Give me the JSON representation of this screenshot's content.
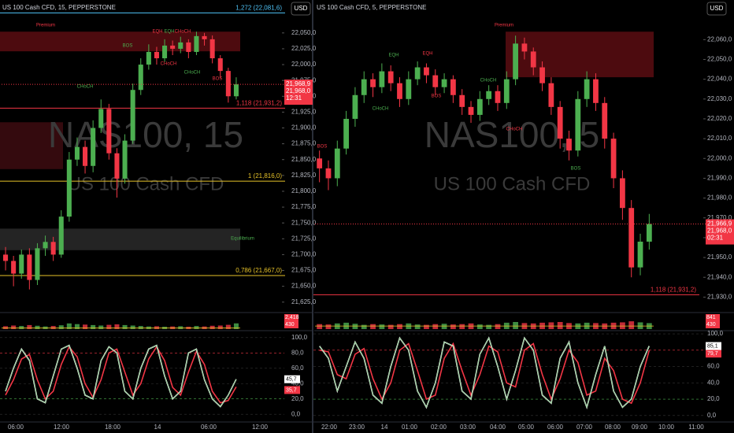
{
  "chart_data": [
    {
      "type": "candlestick",
      "title": "US 100 Cash CFD, 15, PEPPERSTONE",
      "currency": "USD",
      "watermark": "NAS100, 15",
      "watermark_sub": "US 100 Cash CFD",
      "up_color": "#4caf50",
      "down_color": "#f23645",
      "ylim": [
        21611,
        22102
      ],
      "yticks": [
        {
          "value": 22050,
          "label": "22,050,0"
        },
        {
          "value": 22025,
          "label": "22,025,0"
        },
        {
          "value": 22000,
          "label": "22,000,0"
        },
        {
          "value": 21975,
          "label": "21,975,0"
        },
        {
          "value": 21950,
          "label": "21,950,0"
        },
        {
          "value": 21925,
          "label": "21,925,0"
        },
        {
          "value": 21900,
          "label": "21,900,0"
        },
        {
          "value": 21875,
          "label": "21,875,0"
        },
        {
          "value": 21850,
          "label": "21,850,0"
        },
        {
          "value": 21825,
          "label": "21,825,0"
        },
        {
          "value": 21800,
          "label": "21,800,0"
        },
        {
          "value": 21775,
          "label": "21,775,0"
        },
        {
          "value": 21750,
          "label": "21,750,0"
        },
        {
          "value": 21725,
          "label": "21,725,0"
        },
        {
          "value": 21700,
          "label": "21,700,0"
        },
        {
          "value": 21675,
          "label": "21,675,0"
        },
        {
          "value": 21650,
          "label": "21,650,0"
        },
        {
          "value": 21625,
          "label": "21,625,0"
        }
      ],
      "xlabels": [
        "06:00",
        "12:00",
        "18:00",
        "14",
        "06:00",
        "12:00"
      ],
      "candles": {
        "open": [
          21700,
          21690,
          21670,
          21700,
          21660,
          21710,
          21720,
          21700,
          21760,
          21850,
          21870,
          21840,
          21900,
          21930,
          21860,
          21820,
          21880,
          21960,
          22000,
          22020,
          22010,
          22030,
          22025,
          22035,
          22020,
          22045,
          22040,
          22010,
          21990,
          21950
        ],
        "high": [
          21712,
          21698,
          21708,
          21710,
          21718,
          21730,
          21728,
          21770,
          21862,
          21885,
          21880,
          21912,
          21945,
          21938,
          21868,
          21890,
          21970,
          22010,
          22032,
          22028,
          22040,
          22038,
          22044,
          22040,
          22052,
          22050,
          22046,
          22015,
          21995,
          21980
        ],
        "low": [
          21675,
          21650,
          21662,
          21645,
          21652,
          21698,
          21690,
          21695,
          21752,
          21840,
          21828,
          21830,
          21892,
          21850,
          21790,
          21812,
          21875,
          21952,
          21992,
          22000,
          22004,
          22015,
          22018,
          22010,
          22015,
          22030,
          22002,
          21978,
          21940,
          21945
        ],
        "close": [
          21690,
          21670,
          21700,
          21660,
          21710,
          21720,
          21700,
          21760,
          21850,
          21870,
          21840,
          21900,
          21930,
          21860,
          21820,
          21880,
          21960,
          22000,
          22020,
          22010,
          22030,
          22025,
          22035,
          22020,
          22045,
          22040,
          22010,
          21990,
          21950,
          21968.9
        ]
      },
      "last_price": {
        "value": 21968.9,
        "label": "21,968,9"
      },
      "bid": {
        "value": 21968,
        "label": "21,968,0"
      },
      "countdown": "12:31",
      "levels": [
        {
          "value": 22081.6,
          "label": "1,272 (22,081,6)",
          "color": "#4fc3f7"
        },
        {
          "value": 21931.2,
          "label": "1,118 (21,931,2)",
          "color": "#f23645"
        },
        {
          "value": 21816,
          "label": "1 (21,816,0)",
          "color": "#e6c229"
        },
        {
          "value": 21667,
          "label": "0,786 (21,667,0)",
          "color": "#e6c229"
        }
      ],
      "zones": [
        {
          "from": 22021,
          "to": 22052,
          "color": "#5a0d12"
        },
        {
          "from": 21835,
          "to": 21909,
          "color": "#3d0c10"
        },
        {
          "from": 21707,
          "to": 21741,
          "color": "#2a2a2a"
        }
      ],
      "annotations": [
        "Premium",
        "BOS",
        "EQH",
        "EQH",
        "CHoCH",
        "CHoCH",
        "CHoCH",
        "CHoCH",
        "BOS",
        "Equilibrium"
      ],
      "volume": {
        "ylim": [
          0,
          6000
        ],
        "values": [
          1200,
          1500,
          1300,
          1700,
          1400,
          1100,
          1300,
          1600,
          2400,
          2100,
          1900,
          1700,
          1500,
          1800,
          2000,
          1700,
          1500,
          1300,
          1100,
          1200,
          1000,
          1100,
          1200,
          1000,
          1300,
          1100,
          1400,
          1500,
          1800,
          2418
        ],
        "last_label": "2,418"
      },
      "volume_ma": {
        "value": 430,
        "label": "430"
      },
      "oscillator": {
        "ylim": [
          -8,
          107
        ],
        "yticks": [
          {
            "value": 100,
            "label": "100,0"
          },
          {
            "value": 80,
            "label": "80,0"
          },
          {
            "value": 60,
            "label": "60,0"
          },
          {
            "value": 40,
            "label": "40,0"
          },
          {
            "value": 20,
            "label": "20,0"
          },
          {
            "value": 0,
            "label": "0,0"
          }
        ],
        "series": [
          {
            "color": "#4caf50",
            "values": [
              30,
              60,
              85,
              70,
              20,
              15,
              50,
              85,
              90,
              60,
              25,
              20,
              70,
              88,
              80,
              30,
              20,
              60,
              85,
              90,
              50,
              20,
              30,
              80,
              85,
              45,
              20,
              10,
              25,
              45.7
            ],
            "last_label": "45,7"
          },
          {
            "color": "#f23645",
            "values": [
              25,
              45,
              72,
              78,
              45,
              20,
              30,
              65,
              88,
              75,
              40,
              22,
              45,
              80,
              85,
              55,
              25,
              40,
              72,
              88,
              70,
              35,
              25,
              55,
              82,
              65,
              30,
              15,
              18,
              35.7
            ],
            "last_label": "35,7"
          }
        ]
      }
    },
    {
      "type": "candlestick",
      "title": "US 100 Cash CFD, 5, PEPPERSTONE",
      "currency": "USD",
      "watermark": "NAS100, 5",
      "watermark_sub": "US 100 Cash CFD",
      "up_color": "#4caf50",
      "down_color": "#f23645",
      "ylim": [
        21923,
        22080
      ],
      "yticks": [
        {
          "value": 22060,
          "label": "22,060,0"
        },
        {
          "value": 22050,
          "label": "22,050,0"
        },
        {
          "value": 22040,
          "label": "22,040,0"
        },
        {
          "value": 22030,
          "label": "22,030,0"
        },
        {
          "value": 22020,
          "label": "22,020,0"
        },
        {
          "value": 22010,
          "label": "22,010,0"
        },
        {
          "value": 22000,
          "label": "22,000,0"
        },
        {
          "value": 21990,
          "label": "21,990,0"
        },
        {
          "value": 21980,
          "label": "21,980,0"
        },
        {
          "value": 21970,
          "label": "21,970,0"
        },
        {
          "value": 21960,
          "label": "21,960,0"
        },
        {
          "value": 21950,
          "label": "21,950,0"
        },
        {
          "value": 21940,
          "label": "21,940,0"
        },
        {
          "value": 21930,
          "label": "21,930,0"
        }
      ],
      "xlabels": [
        "22:00",
        "23:00",
        "14",
        "01:00",
        "02:00",
        "03:00",
        "04:00",
        "05:00",
        "06:00",
        "07:00",
        "08:00",
        "09:00",
        "10:00",
        "11:00"
      ],
      "candles": {
        "open": [
          22000,
          21995,
          21990,
          22005,
          22020,
          22032,
          22040,
          22036,
          22044,
          22038,
          22030,
          22040,
          22046,
          22042,
          22036,
          22040,
          22032,
          22026,
          22022,
          22030,
          22034,
          22028,
          22040,
          22058,
          22054,
          22046,
          22038,
          22026,
          22010,
          22004,
          22030,
          22040,
          22028,
          22010,
          21990,
          21975,
          21945,
          21958
        ],
        "high": [
          22004,
          21999,
          22009,
          22024,
          22036,
          22044,
          22043,
          22048,
          22047,
          22041,
          22044,
          22049,
          22048,
          22045,
          22043,
          22042,
          22035,
          22029,
          22034,
          22037,
          22037,
          22044,
          22062,
          22061,
          22056,
          22049,
          22041,
          22029,
          22014,
          22034,
          22044,
          22043,
          22031,
          22013,
          21994,
          21979,
          21962,
          21972
        ],
        "low": [
          21988,
          21984,
          21986,
          22002,
          22016,
          22028,
          22031,
          22033,
          22034,
          22026,
          22027,
          22037,
          22038,
          22032,
          22033,
          22028,
          22022,
          22018,
          22019,
          22027,
          22024,
          22025,
          22037,
          22050,
          22042,
          22034,
          22022,
          22005,
          21999,
          22001,
          22026,
          22024,
          22005,
          21985,
          21969,
          21940,
          21941,
          21954
        ],
        "close": [
          21995,
          21990,
          22005,
          22020,
          22032,
          22040,
          22036,
          22044,
          22038,
          22030,
          22040,
          22046,
          22042,
          22036,
          22040,
          22032,
          22026,
          22022,
          22030,
          22034,
          22028,
          22040,
          22058,
          22054,
          22046,
          22038,
          22026,
          22010,
          22004,
          22030,
          22040,
          22028,
          22010,
          21990,
          21975,
          21945,
          21958,
          21966.9
        ]
      },
      "last_price": {
        "value": 21966.9,
        "label": "21,966,9"
      },
      "bid": {
        "value": 21968,
        "label": "21,968,0"
      },
      "countdown": "02:31",
      "levels": [
        {
          "value": 21931.2,
          "label": "1,118 (21,931,2)",
          "color": "#f23645"
        }
      ],
      "zones": [
        {
          "from": 22041,
          "to": 22064,
          "color": "#5a0d12"
        }
      ],
      "annotations": [
        "Premium",
        "EQH",
        "EQH",
        "CHoCH",
        "BOS",
        "CHoCH",
        "CHoCH",
        "BOS",
        "BOS"
      ],
      "volume": {
        "ylim": [
          0,
          2000
        ],
        "values": [
          700,
          650,
          800,
          900,
          750,
          600,
          700,
          650,
          600,
          700,
          800,
          650,
          600,
          700,
          750,
          650,
          700,
          800,
          650,
          600,
          700,
          900,
          1000,
          850,
          800,
          900,
          950,
          1000,
          850,
          800,
          900,
          850,
          800,
          900,
          950,
          1100,
          950,
          841
        ],
        "last_label": "841"
      },
      "volume_ma": {
        "value": 430,
        "label": "430"
      },
      "oscillator": {
        "ylim": [
          -6,
          102
        ],
        "yticks": [
          {
            "value": 100,
            "label": "100,0"
          },
          {
            "value": 80,
            "label": "80,0"
          },
          {
            "value": 60,
            "label": "60,0"
          },
          {
            "value": 40,
            "label": "40,0"
          },
          {
            "value": 20,
            "label": "20,0"
          },
          {
            "value": 0,
            "label": "0,0"
          }
        ],
        "series": [
          {
            "color": "#4caf50",
            "values": [
              85,
              70,
              30,
              60,
              90,
              70,
              25,
              15,
              60,
              95,
              80,
              30,
              10,
              40,
              90,
              85,
              30,
              20,
              75,
              95,
              60,
              20,
              55,
              95,
              80,
              25,
              15,
              70,
              90,
              40,
              10,
              50,
              85,
              30,
              10,
              20,
              60,
              85.1
            ],
            "last_label": "85,1"
          },
          {
            "color": "#f23645",
            "values": [
              80,
              78,
              50,
              45,
              75,
              82,
              45,
              20,
              40,
              80,
              88,
              55,
              20,
              25,
              70,
              88,
              55,
              25,
              50,
              85,
              78,
              40,
              35,
              80,
              88,
              50,
              20,
              45,
              80,
              65,
              25,
              30,
              70,
              55,
              20,
              15,
              40,
              79.7
            ],
            "last_label": "79,7"
          }
        ]
      }
    }
  ]
}
